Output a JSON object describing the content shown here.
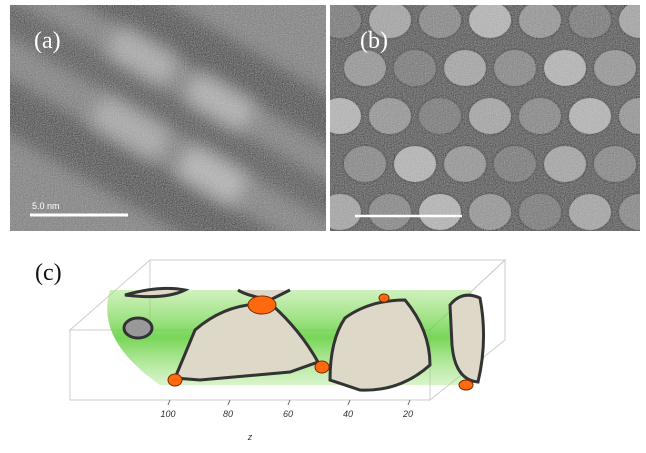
{
  "panels": [
    {
      "label": "(a)",
      "scale_bar": "5.0 nm"
    },
    {
      "label": "(b)"
    },
    {
      "label": "(c)",
      "axis_ticks": [
        "100",
        "80",
        "60",
        "40",
        "20"
      ],
      "axis_label": "z"
    }
  ]
}
